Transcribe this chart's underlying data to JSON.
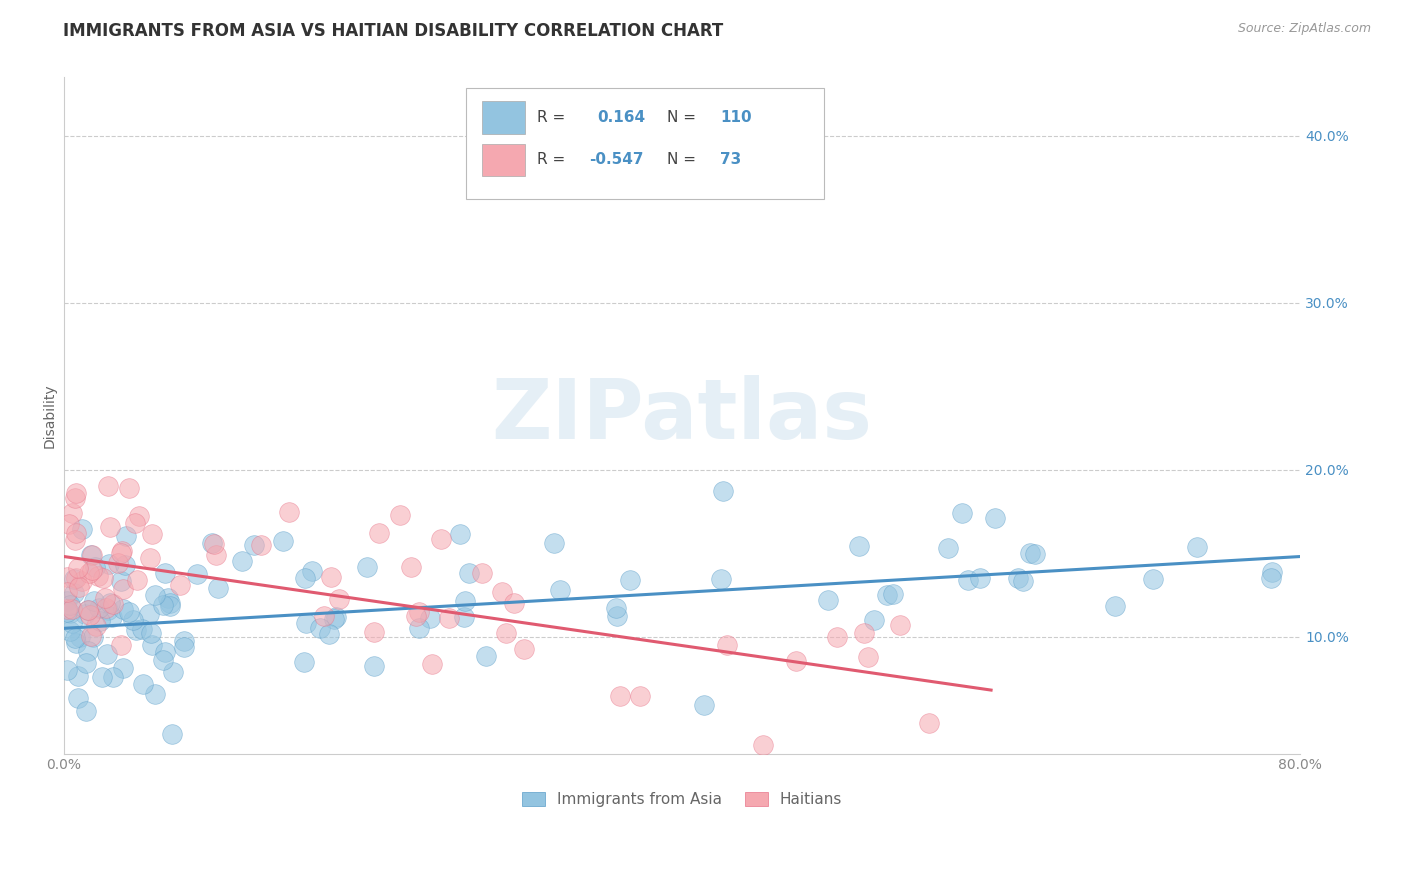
{
  "title": "IMMIGRANTS FROM ASIA VS HAITIAN DISABILITY CORRELATION CHART",
  "source_text": "Source: ZipAtlas.com",
  "ylabel": "Disability",
  "watermark": "ZIPatlas",
  "xlim": [
    0.0,
    0.8
  ],
  "ylim": [
    0.03,
    0.435
  ],
  "xticks": [
    0.0,
    0.1,
    0.2,
    0.3,
    0.4,
    0.5,
    0.6,
    0.7,
    0.8
  ],
  "xticklabels": [
    "0.0%",
    "",
    "",
    "",
    "",
    "",
    "",
    "",
    "80.0%"
  ],
  "yticks": [
    0.1,
    0.2,
    0.3,
    0.4
  ],
  "yticklabels": [
    "10.0%",
    "20.0%",
    "30.0%",
    "40.0%"
  ],
  "blue_color": "#93c4e0",
  "pink_color": "#f5a8b0",
  "blue_edge_color": "#5b9ec9",
  "pink_edge_color": "#e8758a",
  "blue_line_color": "#4a90c4",
  "pink_line_color": "#e05a70",
  "R_blue": "0.164",
  "N_blue": "110",
  "R_pink": "-0.547",
  "N_pink": "73",
  "legend_labels": [
    "Immigrants from Asia",
    "Haitians"
  ],
  "title_color": "#333333",
  "title_fontsize": 12,
  "axis_label_color": "#666666",
  "tick_color": "#888888",
  "grid_color": "#cccccc",
  "background_color": "#ffffff",
  "blue_line": {
    "x0": 0.0,
    "x1": 0.8,
    "y0": 0.105,
    "y1": 0.148
  },
  "pink_line": {
    "x0": 0.0,
    "x1": 0.6,
    "y0": 0.148,
    "y1": 0.068
  }
}
